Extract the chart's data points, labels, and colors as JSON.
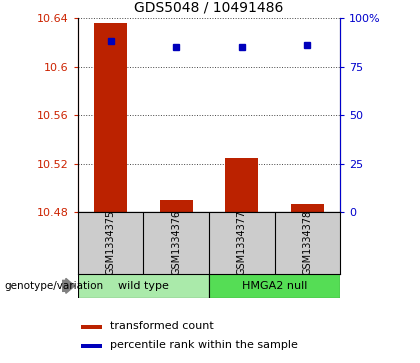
{
  "title": "GDS5048 / 10491486",
  "samples": [
    "GSM1334375",
    "GSM1334376",
    "GSM1334377",
    "GSM1334378"
  ],
  "bar_values": [
    10.636,
    10.49,
    10.525,
    10.487
  ],
  "bar_base": 10.48,
  "percentile_values": [
    88,
    85,
    85,
    86
  ],
  "bar_color": "#bb2200",
  "dot_color": "#0000bb",
  "ylim_left": [
    10.48,
    10.64
  ],
  "ylim_right": [
    0,
    100
  ],
  "yticks_left": [
    10.48,
    10.52,
    10.56,
    10.6,
    10.64
  ],
  "ytick_labels_left": [
    "10.48",
    "10.52",
    "10.56",
    "10.6",
    "10.64"
  ],
  "yticks_right": [
    0,
    25,
    50,
    75,
    100
  ],
  "ytick_labels_right": [
    "0",
    "25",
    "50",
    "75",
    "100%"
  ],
  "group_labels": [
    "wild type",
    "HMGA2 null"
  ],
  "group_color_1": "#aaeaaa",
  "group_color_2": "#55dd55",
  "legend_bar_label": "transformed count",
  "legend_dot_label": "percentile rank within the sample",
  "genotype_label": "genotype/variation",
  "bar_width": 0.5,
  "background_color": "#ffffff",
  "sample_box_color": "#cccccc",
  "tick_label_color_left": "#cc2200",
  "tick_label_color_right": "#0000cc",
  "grid_color": "#444444",
  "title_fontsize": 10,
  "axis_fontsize": 8,
  "legend_fontsize": 8,
  "sample_fontsize": 7
}
